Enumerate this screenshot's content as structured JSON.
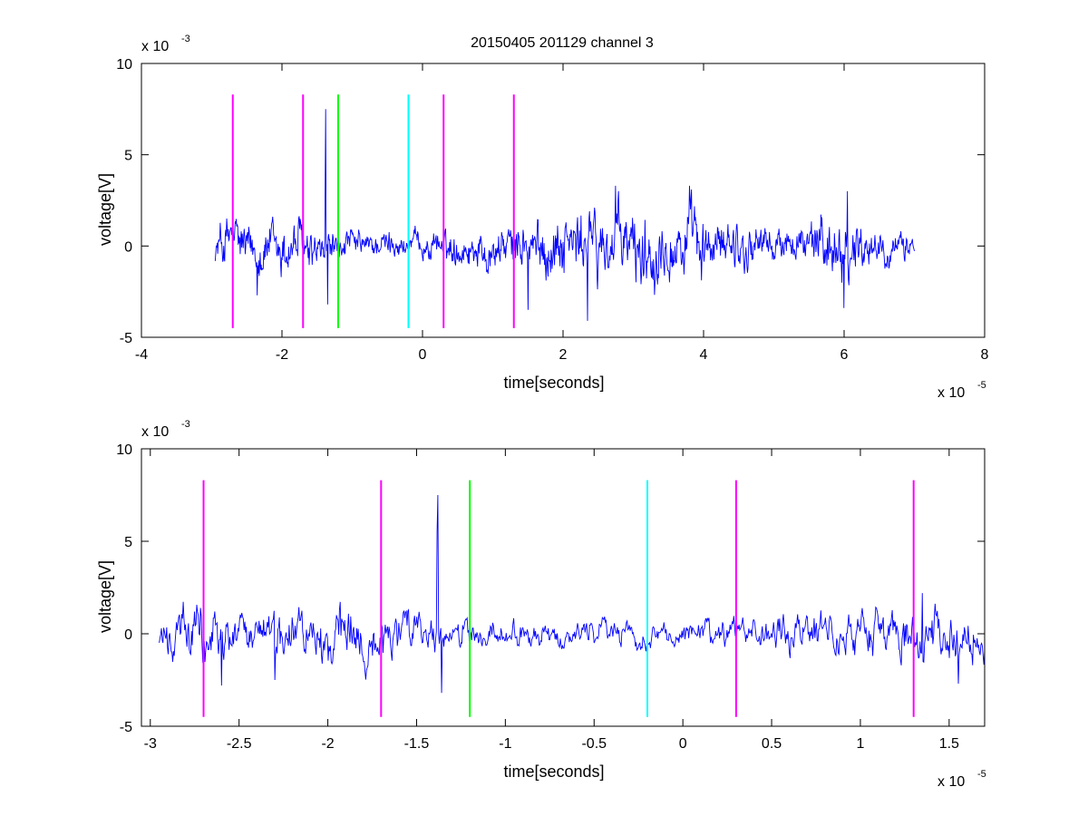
{
  "colors": {
    "signal": "#0000ff",
    "magenta": "#ff00ff",
    "green": "#00ff00",
    "cyan": "#00ffff",
    "axes": "#000000",
    "background": "#ffffff"
  },
  "chart_data": [
    {
      "type": "line",
      "title": "20150405 201129 channel 3",
      "xlabel": "time[seconds]",
      "ylabel": "voltage[V]",
      "xlim": [
        -4e-05,
        8e-05
      ],
      "ylim": [
        -0.005,
        0.01
      ],
      "x_ticks": [
        -4e-05,
        -2e-05,
        0,
        2e-05,
        4e-05,
        6e-05,
        8e-05
      ],
      "x_tick_labels": [
        "-4",
        "-2",
        "0",
        "2",
        "4",
        "6",
        "8"
      ],
      "y_ticks": [
        -0.005,
        0,
        0.005,
        0.01
      ],
      "y_tick_labels": [
        "-5",
        "0",
        "5",
        "10"
      ],
      "x_multiplier": {
        "base": "x 10",
        "exponent": "-5"
      },
      "y_multiplier": {
        "base": "x 10",
        "exponent": "-3"
      },
      "grid": false,
      "signal": {
        "x_start": -2.95e-05,
        "x_end": 7e-05,
        "envelope": [
          [
            -2.95e-05,
            0.0012
          ],
          [
            -2.75e-05,
            0.0025
          ],
          [
            -2.6e-05,
            0.0018
          ],
          [
            -2.2e-05,
            0.0017
          ],
          [
            -1.8e-05,
            0.002
          ],
          [
            -1.4e-05,
            0.0012
          ],
          [
            -1e-05,
            0.0009
          ],
          [
            -5e-06,
            0.0009
          ],
          [
            0.0,
            0.0008
          ],
          [
            5e-06,
            0.0012
          ],
          [
            1.3e-05,
            0.0016
          ],
          [
            2e-05,
            0.0022
          ],
          [
            2.8e-05,
            0.0025
          ],
          [
            3.5e-05,
            0.0026
          ],
          [
            4.2e-05,
            0.0018
          ],
          [
            5e-05,
            0.0012
          ],
          [
            6e-05,
            0.0022
          ],
          [
            6.5e-05,
            0.0012
          ],
          [
            7e-05,
            0.0009
          ]
        ],
        "spikes": [
          [
            -1.38e-05,
            0.0075
          ],
          [
            -1.385e-05,
            0.0034
          ],
          [
            -1.35e-05,
            -0.0032
          ],
          [
            -2.35e-05,
            -0.0027
          ],
          [
            1.5e-05,
            -0.0035
          ],
          [
            2.35e-05,
            -0.0041
          ],
          [
            6e-05,
            -0.0034
          ],
          [
            6.05e-05,
            0.003
          ],
          [
            3.8e-05,
            0.0033
          ],
          [
            2.75e-05,
            0.0033
          ]
        ]
      },
      "markers": [
        {
          "x": -2.7e-05,
          "color": "magenta"
        },
        {
          "x": -1.7e-05,
          "color": "magenta"
        },
        {
          "x": -1.2e-05,
          "color": "green"
        },
        {
          "x": -2e-06,
          "color": "cyan"
        },
        {
          "x": 3e-06,
          "color": "magenta"
        },
        {
          "x": 1.3e-05,
          "color": "magenta"
        }
      ],
      "marker_range": [
        -0.0045,
        0.0083
      ]
    },
    {
      "type": "line",
      "title": "",
      "xlabel": "time[seconds]",
      "ylabel": "voltage[V]",
      "xlim": [
        -3.05e-05,
        1.7e-05
      ],
      "ylim": [
        -0.005,
        0.01
      ],
      "x_ticks": [
        -3e-05,
        -2.5e-05,
        -2e-05,
        -1.5e-05,
        -1e-05,
        -5e-06,
        0,
        5e-06,
        1e-05,
        1.5e-05
      ],
      "x_tick_labels": [
        "-3",
        "-2.5",
        "-2",
        "-1.5",
        "-1",
        "-0.5",
        "0",
        "0.5",
        "1",
        "1.5"
      ],
      "y_ticks": [
        -0.005,
        0,
        0.005,
        0.01
      ],
      "y_tick_labels": [
        "-5",
        "0",
        "5",
        "10"
      ],
      "x_multiplier": {
        "base": "x 10",
        "exponent": "-5"
      },
      "y_multiplier": {
        "base": "x 10",
        "exponent": "-3"
      },
      "grid": false,
      "signal": {
        "x_start": -2.95e-05,
        "x_end": 1.7e-05,
        "envelope": [
          [
            -2.95e-05,
            0.0012
          ],
          [
            -2.75e-05,
            0.0025
          ],
          [
            -2.6e-05,
            0.0018
          ],
          [
            -2.2e-05,
            0.0017
          ],
          [
            -1.8e-05,
            0.002
          ],
          [
            -1.4e-05,
            0.0012
          ],
          [
            -1e-05,
            0.0009
          ],
          [
            -5e-06,
            0.0009
          ],
          [
            0.0,
            0.0008
          ],
          [
            5e-06,
            0.0012
          ],
          [
            1.3e-05,
            0.0018
          ],
          [
            1.7e-05,
            0.0015
          ]
        ],
        "spikes": [
          [
            -1.38e-05,
            0.0075
          ],
          [
            -1.385e-05,
            0.0055
          ],
          [
            -1.36e-05,
            -0.0032
          ],
          [
            -2.6e-05,
            -0.0028
          ],
          [
            -2.3e-05,
            -0.0025
          ],
          [
            1.35e-05,
            0.0022
          ],
          [
            1.55e-05,
            -0.0027
          ],
          [
            1.7e-05,
            -0.0009
          ]
        ]
      },
      "markers": [
        {
          "x": -2.7e-05,
          "color": "magenta"
        },
        {
          "x": -1.7e-05,
          "color": "magenta"
        },
        {
          "x": -1.2e-05,
          "color": "green"
        },
        {
          "x": -2e-06,
          "color": "cyan"
        },
        {
          "x": 3e-06,
          "color": "magenta"
        },
        {
          "x": 1.3e-05,
          "color": "magenta"
        }
      ],
      "marker_range": [
        -0.0045,
        0.0083
      ]
    }
  ]
}
